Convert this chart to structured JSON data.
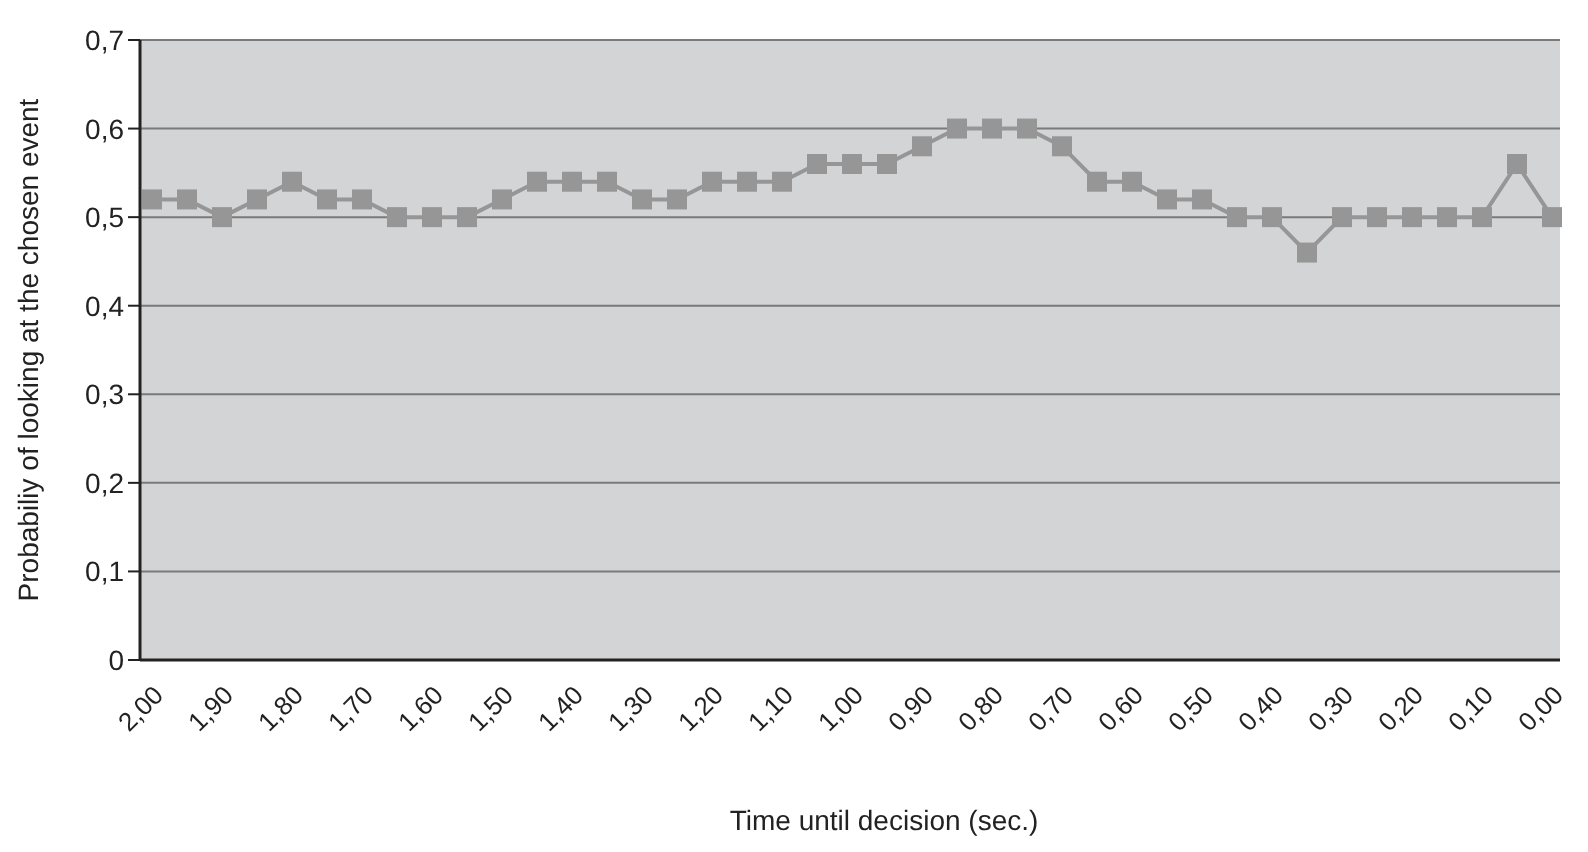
{
  "chart_data": {
    "type": "line",
    "xlabel": "Time until decision (sec.)",
    "ylabel": "Probabiliy of looking at the chosen event",
    "categories": [
      "2,00",
      null,
      "1,90",
      null,
      "1,80",
      null,
      "1,70",
      null,
      "1,60",
      null,
      "1,50",
      null,
      "1,40",
      null,
      "1,30",
      null,
      "1,20",
      null,
      "1,10",
      null,
      "1,00",
      null,
      "0,90",
      null,
      "0,80",
      null,
      "0,70",
      null,
      "0,60",
      null,
      "0,50",
      null,
      "0,40",
      null,
      "0,30",
      null,
      "0,20",
      null,
      "0,10",
      null,
      "0,00"
    ],
    "series": [
      {
        "color": "#969696",
        "values": [
          0.52,
          0.52,
          0.5,
          0.52,
          0.54,
          0.52,
          0.52,
          0.5,
          0.5,
          0.5,
          0.52,
          0.54,
          0.54,
          0.54,
          0.52,
          0.52,
          0.54,
          0.54,
          0.54,
          0.56,
          0.56,
          0.56,
          0.58,
          0.6,
          0.6,
          0.6,
          0.58,
          0.54,
          0.54,
          0.52,
          0.52,
          0.5,
          0.5,
          0.46,
          0.5,
          0.5,
          0.5,
          0.5,
          0.5,
          0.56,
          0.5
        ]
      }
    ],
    "ylim": [
      0,
      0.7
    ],
    "yticks": [
      0,
      {
        "value": 0.1,
        "label": "0,1"
      },
      {
        "value": 0.2,
        "label": "0,2"
      },
      {
        "value": 0.3,
        "label": "0,3"
      },
      {
        "value": 0.4,
        "label": "0,4"
      },
      {
        "value": 0.5,
        "label": "0,5"
      },
      {
        "value": 0.6,
        "label": "0,6"
      },
      {
        "value": 0.7,
        "label": "0,7"
      }
    ],
    "grid": "y",
    "legend": false,
    "marker": "square",
    "line_style": "solid"
  }
}
